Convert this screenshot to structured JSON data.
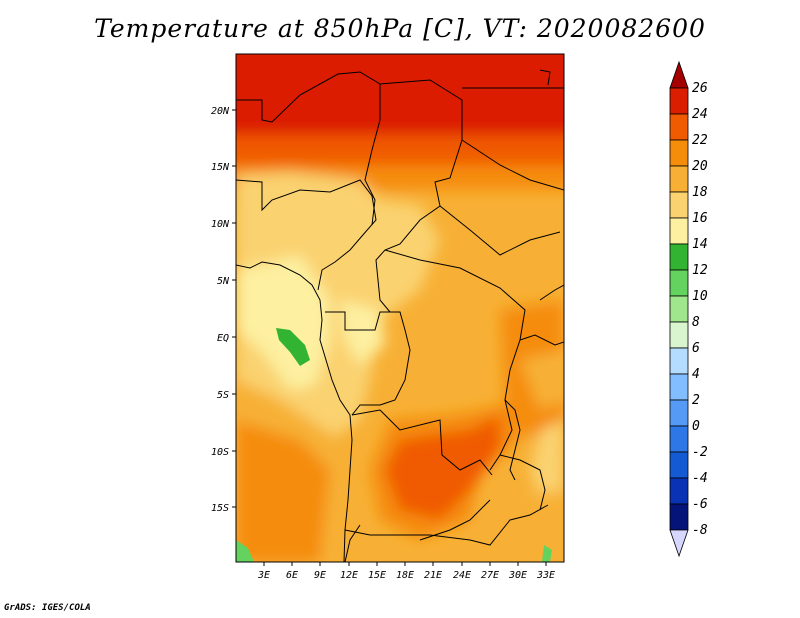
{
  "title": "Temperature at 850hPa [C], VT: 2020082600",
  "credit": "GrADS: IGES/COLA",
  "map": {
    "lat_labels": [
      "20N",
      "15N",
      "10N",
      "5N",
      "EQ",
      "5S",
      "10S",
      "15S"
    ],
    "lon_labels": [
      "3E",
      "6E",
      "9E",
      "12E",
      "15E",
      "18E",
      "21E",
      "24E",
      "27E",
      "30E",
      "33E"
    ]
  },
  "colorbar": {
    "labels": [
      "26",
      "24",
      "22",
      "20",
      "18",
      "16",
      "14",
      "12",
      "10",
      "8",
      "6",
      "4",
      "2",
      "0",
      "-2",
      "-4",
      "-6",
      "-8"
    ],
    "colors": [
      "#a50000",
      "#dc1e00",
      "#f05a00",
      "#f58c0a",
      "#f7b035",
      "#fad270",
      "#fdf0a0",
      "#32b432",
      "#64d25f",
      "#a0e68c",
      "#d8f5d0",
      "#b4dcff",
      "#82beff",
      "#559bf5",
      "#2d78e6",
      "#145ad2",
      "#0a32b4",
      "#051478",
      "#d6d6ff"
    ]
  }
}
